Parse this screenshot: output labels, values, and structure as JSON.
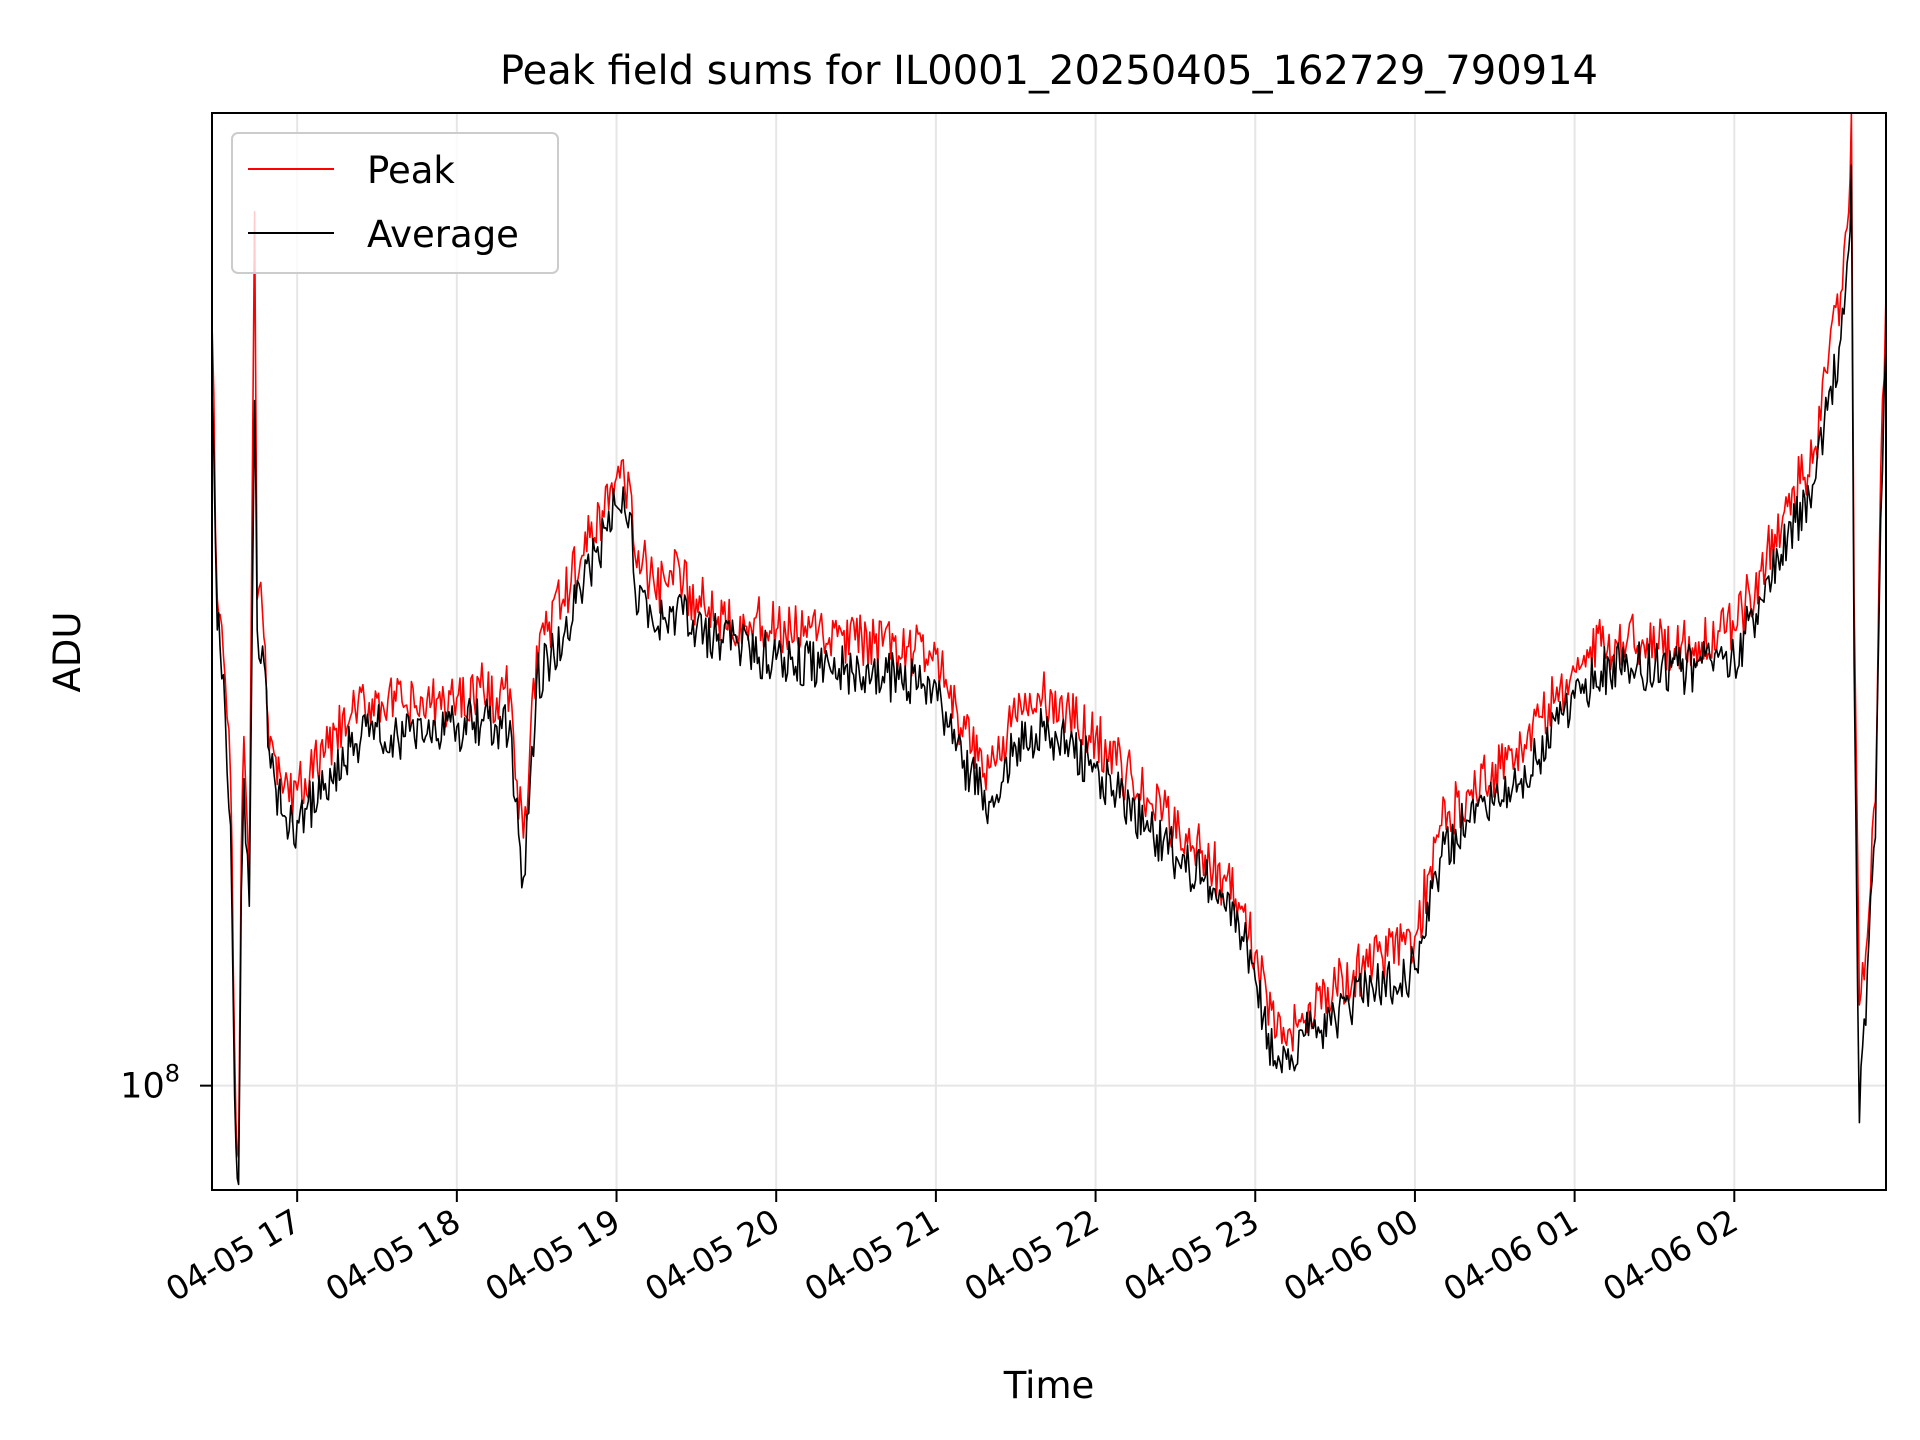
{
  "chart_data": {
    "type": "line",
    "title": "Peak field sums for IL0001_20250405_162729_790914",
    "xlabel": "Time",
    "ylabel": "ADU",
    "y_scale": "log",
    "grid": true,
    "legend_position": "top-left",
    "xlim": [
      "04-05 16:28",
      "04-06 02:57"
    ],
    "ylim": [
      79000000,
      900000000
    ],
    "y_ticks": [
      {
        "value": 100000000,
        "base": "10",
        "exp": "8"
      }
    ],
    "x_ticks": [
      "04-05 17",
      "04-05 18",
      "04-05 19",
      "04-05 20",
      "04-05 21",
      "04-05 22",
      "04-05 23",
      "04-06 00",
      "04-06 01",
      "04-06 02"
    ],
    "x_tick_times": [
      "04-05 17:00",
      "04-05 18:00",
      "04-05 19:00",
      "04-05 20:00",
      "04-05 21:00",
      "04-05 22:00",
      "04-05 23:00",
      "04-06 00:00",
      "04-06 01:00",
      "04-06 02:00"
    ],
    "series": [
      {
        "name": "Peak",
        "color": "#ff0000",
        "x": [
          "04-05 16:28",
          "04-05 16:30",
          "04-05 16:31",
          "04-05 16:33",
          "04-05 16:35",
          "04-05 16:36",
          "04-05 16:37",
          "04-05 16:38",
          "04-05 16:39",
          "04-05 16:40",
          "04-05 16:42",
          "04-05 16:44",
          "04-05 16:45",
          "04-05 16:47",
          "04-05 16:48",
          "04-05 16:49",
          "04-05 16:50",
          "04-05 16:52",
          "04-05 16:53",
          "04-05 16:54",
          "04-05 16:57",
          "04-05 17:00",
          "04-05 17:03",
          "04-05 17:10",
          "04-05 17:20",
          "04-05 17:30",
          "04-05 17:40",
          "04-05 17:50",
          "04-05 18:00",
          "04-05 18:10",
          "04-05 18:15",
          "04-05 18:20",
          "04-05 18:22",
          "04-05 18:25",
          "04-05 18:27",
          "04-05 18:30",
          "04-05 18:40",
          "04-05 18:50",
          "04-05 19:00",
          "04-05 19:05",
          "04-05 19:07",
          "04-05 19:10",
          "04-05 19:15",
          "04-05 19:20",
          "04-05 19:25",
          "04-05 19:30",
          "04-05 19:40",
          "04-05 19:50",
          "04-05 20:00",
          "04-05 20:20",
          "04-05 20:40",
          "04-05 21:00",
          "04-05 21:05",
          "04-05 21:10",
          "04-05 21:20",
          "04-05 21:30",
          "04-05 21:40",
          "04-05 22:00",
          "04-05 22:20",
          "04-05 22:40",
          "04-05 22:55",
          "04-05 23:00",
          "04-05 23:08",
          "04-05 23:10",
          "04-05 23:20",
          "04-05 23:40",
          "04-06 00:00",
          "04-06 00:10",
          "04-06 00:20",
          "04-06 00:40",
          "04-06 01:00",
          "04-06 01:10",
          "04-06 01:20",
          "04-06 01:40",
          "04-06 02:00",
          "04-06 02:10",
          "04-06 02:20",
          "04-06 02:30",
          "04-06 02:35",
          "04-06 02:40",
          "04-06 02:43",
          "04-06 02:44",
          "04-06 02:45",
          "04-06 02:47",
          "04-06 02:50",
          "04-06 02:53",
          "04-06 02:55",
          "04-06 02:57"
        ],
        "values": [
          560000000,
          300000000,
          290000000,
          250000000,
          200000000,
          130000000,
          92000000,
          85000000,
          170000000,
          220000000,
          160000000,
          720000000,
          300000000,
          290000000,
          270000000,
          230000000,
          220000000,
          210000000,
          210000000,
          200000000,
          190000000,
          195000000,
          200000000,
          210000000,
          230000000,
          240000000,
          235000000,
          235000000,
          240000000,
          245000000,
          240000000,
          245000000,
          200000000,
          175000000,
          200000000,
          270000000,
          300000000,
          345000000,
          395000000,
          390000000,
          330000000,
          330000000,
          300000000,
          320000000,
          310000000,
          300000000,
          290000000,
          285000000,
          280000000,
          275000000,
          270000000,
          265000000,
          240000000,
          220000000,
          205000000,
          230000000,
          240000000,
          220000000,
          190000000,
          170000000,
          150000000,
          135000000,
          112000000,
          110000000,
          120000000,
          130000000,
          140000000,
          180000000,
          195000000,
          215000000,
          255000000,
          270000000,
          275000000,
          270000000,
          280000000,
          320000000,
          370000000,
          420000000,
          500000000,
          600000000,
          720000000,
          950000000,
          300000000,
          120000000,
          140000000,
          190000000,
          400000000,
          600000000
        ]
      },
      {
        "name": "Average",
        "color": "#000000",
        "x": [
          "04-05 16:28",
          "04-05 16:30",
          "04-05 16:31",
          "04-05 16:33",
          "04-05 16:35",
          "04-05 16:36",
          "04-05 16:37",
          "04-05 16:38",
          "04-05 16:39",
          "04-05 16:40",
          "04-05 16:42",
          "04-05 16:44",
          "04-05 16:45",
          "04-05 16:47",
          "04-05 16:48",
          "04-05 16:49",
          "04-05 16:50",
          "04-05 16:52",
          "04-05 16:53",
          "04-05 16:54",
          "04-05 16:57",
          "04-05 17:00",
          "04-05 17:03",
          "04-05 17:10",
          "04-05 17:20",
          "04-05 17:30",
          "04-05 17:40",
          "04-05 17:50",
          "04-05 18:00",
          "04-05 18:10",
          "04-05 18:15",
          "04-05 18:20",
          "04-05 18:22",
          "04-05 18:25",
          "04-05 18:27",
          "04-05 18:30",
          "04-05 18:40",
          "04-05 18:50",
          "04-05 19:00",
          "04-05 19:05",
          "04-05 19:07",
          "04-05 19:10",
          "04-05 19:15",
          "04-05 19:20",
          "04-05 19:25",
          "04-05 19:30",
          "04-05 19:40",
          "04-05 19:50",
          "04-05 20:00",
          "04-05 20:20",
          "04-05 20:40",
          "04-05 21:00",
          "04-05 21:05",
          "04-05 21:10",
          "04-05 21:20",
          "04-05 21:30",
          "04-05 21:40",
          "04-05 22:00",
          "04-05 22:20",
          "04-05 22:40",
          "04-05 22:55",
          "04-05 23:00",
          "04-05 23:08",
          "04-05 23:10",
          "04-05 23:20",
          "04-05 23:40",
          "04-06 00:00",
          "04-06 00:10",
          "04-06 00:20",
          "04-06 00:40",
          "04-06 01:00",
          "04-06 01:10",
          "04-06 01:20",
          "04-06 01:40",
          "04-06 02:00",
          "04-06 02:10",
          "04-06 02:20",
          "04-06 02:30",
          "04-06 02:35",
          "04-06 02:40",
          "04-06 02:43",
          "04-06 02:44",
          "04-06 02:45",
          "04-06 02:47",
          "04-06 02:50",
          "04-06 02:53",
          "04-06 02:55",
          "04-06 02:57"
        ],
        "values": [
          480000000,
          280000000,
          270000000,
          230000000,
          180000000,
          120000000,
          87000000,
          80000000,
          155000000,
          200000000,
          150000000,
          470000000,
          280000000,
          270000000,
          255000000,
          215000000,
          205000000,
          195000000,
          195000000,
          185000000,
          178000000,
          182000000,
          187000000,
          195000000,
          215000000,
          225000000,
          220000000,
          220000000,
          225000000,
          228000000,
          225000000,
          228000000,
          190000000,
          160000000,
          185000000,
          250000000,
          275000000,
          320000000,
          370000000,
          365000000,
          305000000,
          305000000,
          280000000,
          295000000,
          290000000,
          280000000,
          272000000,
          268000000,
          262000000,
          258000000,
          252000000,
          248000000,
          225000000,
          205000000,
          190000000,
          215000000,
          225000000,
          205000000,
          178000000,
          160000000,
          140000000,
          127000000,
          104000000,
          103000000,
          112000000,
          122000000,
          130000000,
          168000000,
          182000000,
          200000000,
          240000000,
          255000000,
          258000000,
          255000000,
          262000000,
          300000000,
          345000000,
          390000000,
          460000000,
          540000000,
          660000000,
          800000000,
          260000000,
          92000000,
          130000000,
          175000000,
          360000000,
          530000000
        ]
      }
    ]
  }
}
